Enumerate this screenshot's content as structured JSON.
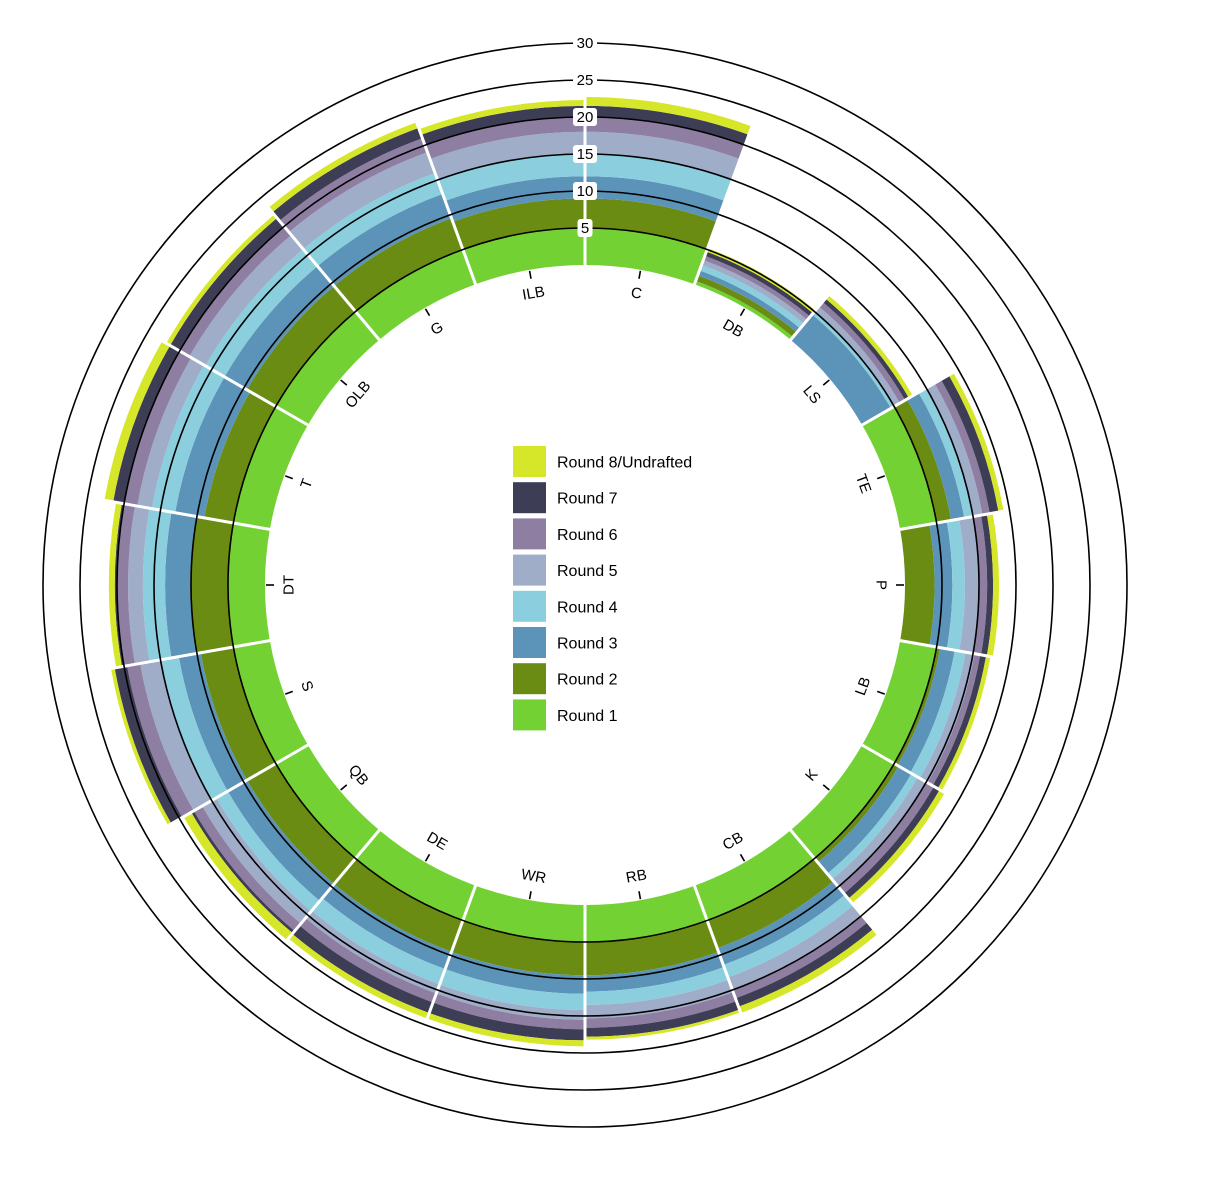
{
  "chart_data": {
    "type": "radial stacked bar",
    "inner_radius_value": 0,
    "rlim": [
      0,
      30
    ],
    "ring_ticks": [
      5,
      10,
      15,
      20,
      25,
      30
    ],
    "categories": [
      "C",
      "DB",
      "LS",
      "TE",
      "P",
      "LB",
      "K",
      "CB",
      "RB",
      "WR",
      "DE",
      "QB",
      "S",
      "DT",
      "T",
      "OLB",
      "G",
      "ILB"
    ],
    "series": [
      {
        "name": "Round 1",
        "color": "#74d134",
        "values": [
          5,
          0.5,
          0,
          5,
          0,
          5,
          5,
          5,
          5,
          5,
          5,
          5,
          5,
          5,
          5,
          5,
          5,
          5
        ]
      },
      {
        "name": "Round 2",
        "color": "#6a8c12",
        "values": [
          4,
          0.8,
          0,
          2,
          4,
          0.5,
          0.7,
          4,
          4.5,
          4.5,
          4.5,
          4.5,
          4.5,
          5,
          4,
          4.5,
          4.5,
          4
        ]
      },
      {
        "name": "Round 3",
        "color": "#5c93b9",
        "values": [
          3,
          0.7,
          4.5,
          1.8,
          2.4,
          2,
          2,
          2.4,
          2.2,
          2.5,
          2.5,
          3,
          3,
          3.5,
          4,
          3.5,
          3.5,
          3
        ]
      },
      {
        "name": "Round 4",
        "color": "#8bcfde",
        "values": [
          3,
          0.8,
          0.6,
          1.2,
          1.7,
          1.5,
          1,
          1.8,
          1.8,
          2.2,
          2.2,
          1.8,
          2.5,
          3,
          3.2,
          3,
          3,
          3
        ]
      },
      {
        "name": "Round 5",
        "color": "#9fadc9",
        "values": [
          3,
          0.7,
          0.8,
          1.3,
          1.8,
          1.2,
          1.3,
          1.7,
          1.8,
          1.3,
          1.3,
          2.2,
          2.8,
          2,
          2,
          2.5,
          3,
          3
        ]
      },
      {
        "name": "Round 6",
        "color": "#8e7fa2",
        "values": [
          2,
          0.6,
          0.8,
          1,
          1.2,
          0.8,
          1.2,
          1.3,
          1.3,
          1.3,
          1.3,
          1.3,
          1.8,
          1.5,
          1.8,
          1.5,
          2,
          2
        ]
      },
      {
        "name": "Round 7",
        "color": "#3d3e56",
        "values": [
          1.5,
          0.6,
          0.6,
          1.2,
          0.8,
          0.8,
          0.9,
          1.2,
          1.2,
          1.5,
          1.5,
          0.4,
          1.7,
          0.3,
          1.5,
          1.5,
          1.5,
          1.5
        ]
      },
      {
        "name": "Round 8/Undrafted",
        "color": "#d6e729",
        "values": [
          1.2,
          0.5,
          0.6,
          0.7,
          0.8,
          0.6,
          0.8,
          0.9,
          0.4,
          0.8,
          0.8,
          1.2,
          0.5,
          0.8,
          1.2,
          0.6,
          0.8,
          0.8
        ]
      }
    ],
    "legend_position": "center"
  }
}
